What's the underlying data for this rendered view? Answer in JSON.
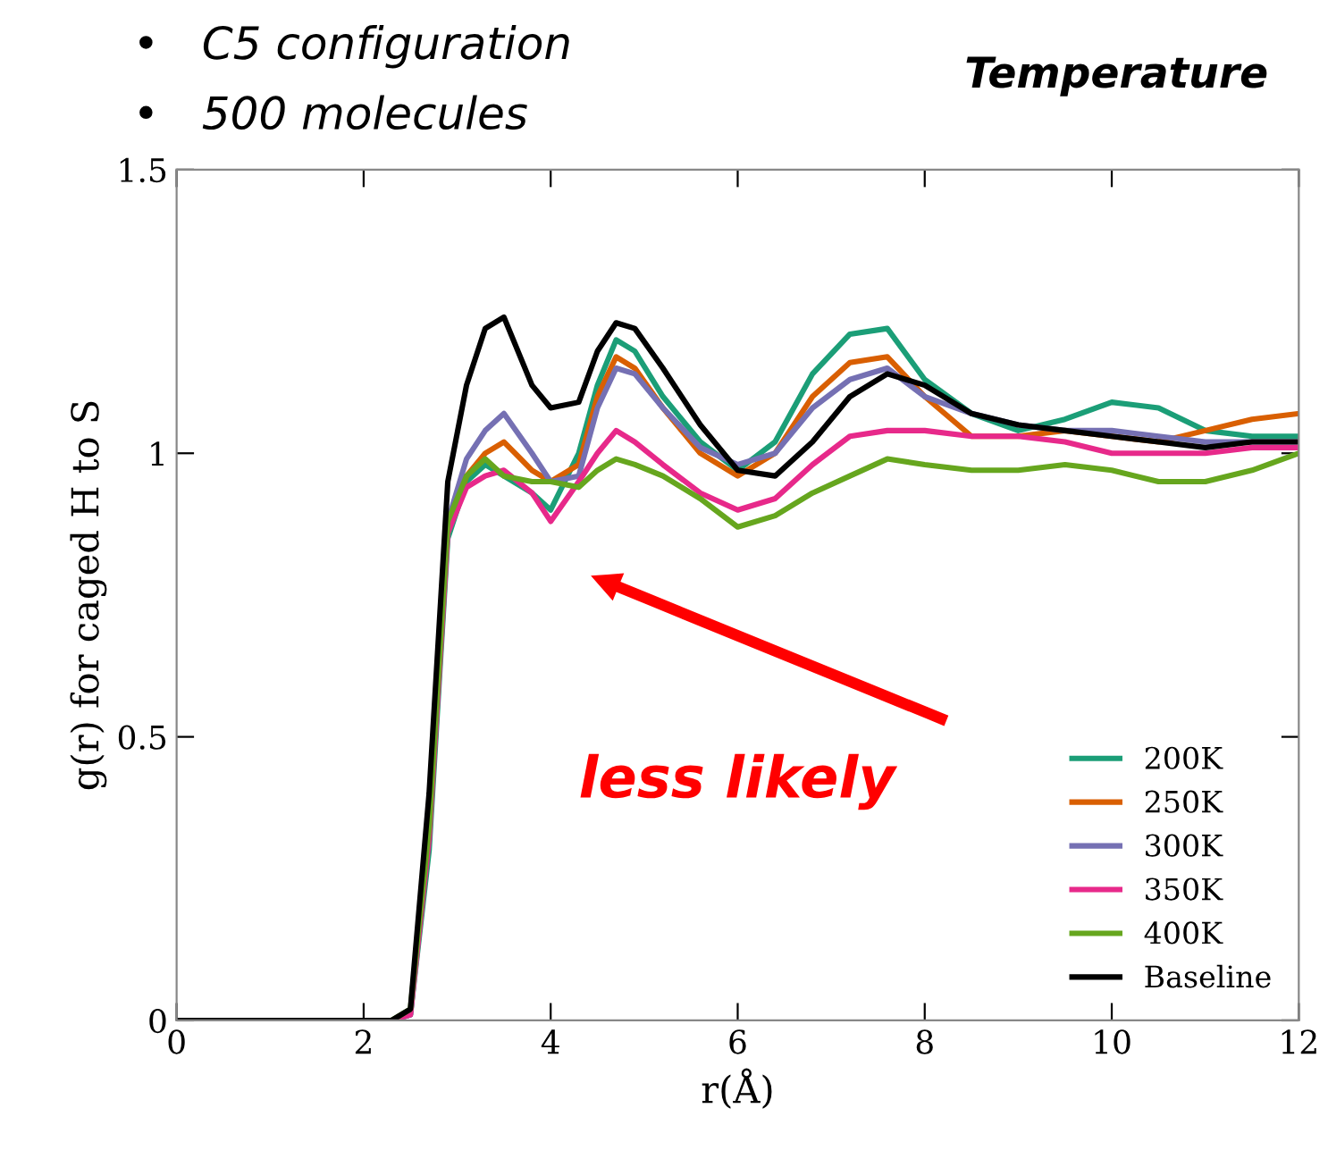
{
  "chart_data": {
    "type": "line",
    "title": "Temperature",
    "xlabel": "r(Å)",
    "ylabel": "g(r) for caged H to S",
    "annotations": [
      "•   C5 configuration",
      "•   500 molecules",
      "less likely"
    ],
    "x": [
      0,
      2.3,
      2.5,
      2.7,
      2.9,
      3.1,
      3.3,
      3.5,
      3.8,
      4.0,
      4.3,
      4.5,
      4.7,
      4.9,
      5.2,
      5.6,
      6.0,
      6.4,
      6.8,
      7.2,
      7.6,
      8.0,
      8.5,
      9.0,
      9.5,
      10.0,
      10.5,
      11.0,
      11.5,
      12.0
    ],
    "series": [
      {
        "name": "200K",
        "color": "#1b9e77",
        "values": [
          0,
          0,
          0.01,
          0.3,
          0.85,
          0.95,
          0.98,
          0.96,
          0.93,
          0.9,
          1.0,
          1.12,
          1.2,
          1.18,
          1.1,
          1.02,
          0.97,
          1.02,
          1.14,
          1.21,
          1.22,
          1.13,
          1.07,
          1.04,
          1.06,
          1.09,
          1.08,
          1.04,
          1.03,
          1.03
        ]
      },
      {
        "name": "250K",
        "color": "#d95f02",
        "values": [
          null,
          null,
          null,
          null,
          0.86,
          0.96,
          1.0,
          1.02,
          0.97,
          0.95,
          0.98,
          1.1,
          1.17,
          1.15,
          1.08,
          1.0,
          0.96,
          1.0,
          1.1,
          1.16,
          1.17,
          1.1,
          1.03,
          1.03,
          1.04,
          1.03,
          1.02,
          1.04,
          1.06,
          1.07
        ]
      },
      {
        "name": "300K",
        "color": "#7570b3",
        "values": [
          0,
          0,
          0.01,
          0.33,
          0.88,
          0.99,
          1.04,
          1.07,
          1.0,
          0.95,
          0.96,
          1.08,
          1.15,
          1.14,
          1.08,
          1.01,
          0.98,
          1.0,
          1.08,
          1.13,
          1.15,
          1.1,
          1.07,
          1.05,
          1.04,
          1.04,
          1.03,
          1.02,
          1.02,
          1.02
        ]
      },
      {
        "name": "350K",
        "color": "#e7298a",
        "values": [
          0,
          0,
          0.01,
          0.32,
          0.86,
          0.94,
          0.96,
          0.97,
          0.93,
          0.88,
          0.95,
          1.0,
          1.04,
          1.02,
          0.98,
          0.93,
          0.9,
          0.92,
          0.98,
          1.03,
          1.04,
          1.04,
          1.03,
          1.03,
          1.02,
          1.0,
          1.0,
          1.0,
          1.01,
          1.01
        ]
      },
      {
        "name": "400K",
        "color": "#66a61e",
        "values": [
          0,
          0,
          0.02,
          0.34,
          0.88,
          0.96,
          0.99,
          0.96,
          0.95,
          0.95,
          0.94,
          0.97,
          0.99,
          0.98,
          0.96,
          0.92,
          0.87,
          0.89,
          0.93,
          0.96,
          0.99,
          0.98,
          0.97,
          0.97,
          0.98,
          0.97,
          0.95,
          0.95,
          0.97,
          1.0
        ]
      },
      {
        "name": "Baseline",
        "color": "#000000",
        "values": [
          0,
          0,
          0.02,
          0.4,
          0.95,
          1.12,
          1.22,
          1.24,
          1.12,
          1.08,
          1.09,
          1.18,
          1.23,
          1.22,
          1.15,
          1.05,
          0.97,
          0.96,
          1.02,
          1.1,
          1.14,
          1.12,
          1.07,
          1.05,
          1.04,
          1.03,
          1.02,
          1.01,
          1.02,
          1.02
        ]
      }
    ],
    "xlim": [
      0,
      12
    ],
    "xticks": [
      0,
      2,
      4,
      6,
      8,
      10,
      12
    ],
    "ylim": [
      0,
      1.5
    ],
    "yticks": [
      0,
      0.5,
      1,
      1.5
    ],
    "grid": false,
    "legend": "bottom right",
    "marker": "none",
    "line_style": "solid"
  }
}
